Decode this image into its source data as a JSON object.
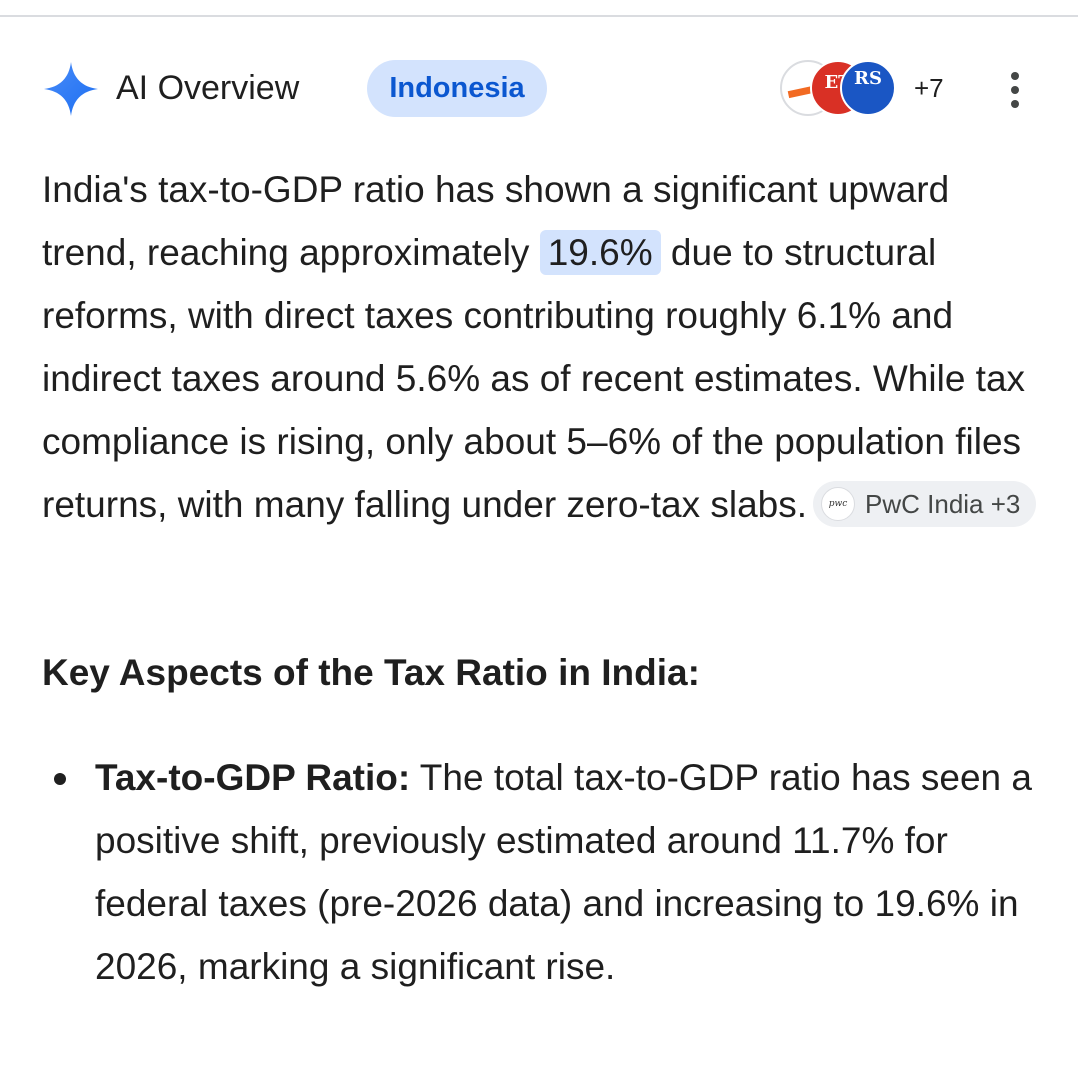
{
  "header": {
    "title": "AI Overview",
    "region_chip": "Indonesia",
    "sources_more_count": "+7",
    "favicons": [
      {
        "icon": "source-favicon-1"
      },
      {
        "icon": "source-favicon-2",
        "text": "ET"
      },
      {
        "icon": "source-favicon-3",
        "text": "RS"
      }
    ],
    "menu_icon": "more-vert-icon"
  },
  "intro": {
    "part1": "India's tax-to-GDP ratio has shown a significant upward trend, reaching approximately ",
    "highlight": "19.6%",
    "part2": " due to structural reforms, with direct taxes contributing roughly 6.1% and indirect taxes around 5.6% as of recent estimates. While tax compliance is rising, only about 5–6% of the population files returns, with many falling under zero-tax slabs.",
    "citation": {
      "logo_text": "pwc",
      "label": "PwC India +3"
    }
  },
  "section": {
    "heading": "Key Aspects of the Tax Ratio in India:"
  },
  "bullets": [
    {
      "title": "Tax-to-GDP Ratio:",
      "text": " The total tax-to-GDP ratio has seen a positive shift, previously estimated around 11.7% for federal taxes (pre-2026 data) and increasing to 19.6% in 2026, marking a significant rise."
    }
  ],
  "colors": {
    "accent_blue": "#0b57d0",
    "chip_bg": "#d3e3fd",
    "text": "#1f1f1f",
    "cite_bg": "#eef0f3"
  }
}
